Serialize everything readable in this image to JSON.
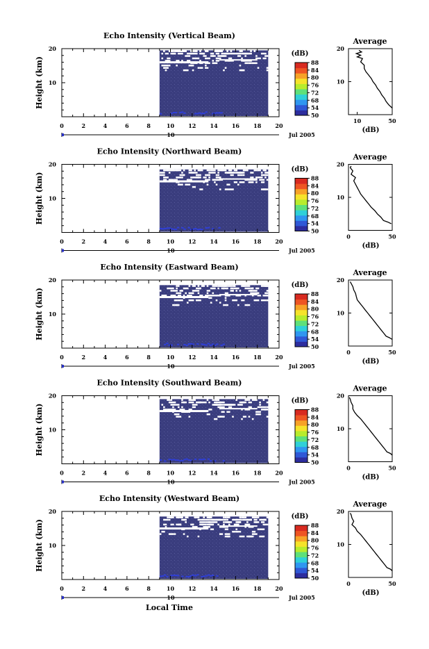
{
  "colors": {
    "background_fill": "#3a3d7e",
    "echo_white": "#ffffff",
    "colorbar": [
      "#2d2d9e",
      "#2f58d6",
      "#2f96f0",
      "#2fd0d8",
      "#5ee07a",
      "#b8ec2c",
      "#f6e32a",
      "#f7a227",
      "#ee5523",
      "#d82a20"
    ]
  },
  "common": {
    "ylabel": "Height (km)",
    "colorbar_unit": "(dB)",
    "colorbar_ticks": [
      "50",
      "54",
      "68",
      "72",
      "76",
      "80",
      "84",
      "88"
    ],
    "x_ticks": [
      "0",
      "2",
      "4",
      "6",
      "8",
      "10",
      "12",
      "14",
      "16",
      "18",
      "20"
    ],
    "y_ticks": [
      "10",
      "20"
    ],
    "date_day": "10",
    "date_label": "Jul 2005",
    "avg_title": "Average",
    "avg_xlabel": "(dB)",
    "xlabel": "Local Time"
  },
  "chart_data": [
    {
      "type": "heatmap",
      "title": "Echo Intensity (Vertical Beam)",
      "ylabel": "Height (km)",
      "xlabel": "Local Time",
      "xlim": [
        0,
        20
      ],
      "ylim": [
        0,
        20
      ],
      "data_x_range": [
        9,
        19
      ],
      "data_top_km": 19.5,
      "cbar_range_db": [
        50,
        88
      ],
      "avg_profile": {
        "xlim": [
          0,
          50
        ],
        "x_ticks": [
          "10",
          "50"
        ],
        "height": [
          19.5,
          19,
          18.5,
          18,
          17.5,
          17,
          16,
          15,
          14,
          13,
          12,
          11,
          10,
          9,
          8,
          7,
          6,
          5,
          4,
          3,
          2.5,
          2
        ],
        "db": [
          12,
          15,
          9,
          14,
          10,
          16,
          14,
          18,
          18,
          20,
          23,
          26,
          28,
          31,
          33,
          36,
          38,
          41,
          43,
          46,
          48,
          50
        ]
      }
    },
    {
      "type": "heatmap",
      "title": "Echo Intensity (Northward Beam)",
      "ylabel": "Height (km)",
      "xlabel": "Local Time",
      "xlim": [
        0,
        20
      ],
      "ylim": [
        0,
        20
      ],
      "data_x_range": [
        9,
        19
      ],
      "data_top_km": 18.5,
      "cbar_range_db": [
        50,
        88
      ],
      "avg_profile": {
        "xlim": [
          0,
          50
        ],
        "x_ticks": [
          "0",
          "50"
        ],
        "height": [
          19.5,
          19,
          18,
          17,
          16,
          15,
          14,
          13,
          12,
          11,
          10,
          9,
          8,
          7,
          6,
          5,
          4,
          3,
          2.5,
          2
        ],
        "db": [
          3,
          2,
          5,
          3,
          8,
          6,
          8,
          10,
          12,
          14,
          17,
          20,
          23,
          26,
          30,
          33,
          37,
          40,
          45,
          49
        ]
      }
    },
    {
      "type": "heatmap",
      "title": "Echo Intensity (Eastward Beam)",
      "ylabel": "Height (km)",
      "xlabel": "Local Time",
      "xlim": [
        0,
        20
      ],
      "ylim": [
        0,
        20
      ],
      "data_x_range": [
        9,
        19
      ],
      "data_top_km": 18.5,
      "cbar_range_db": [
        50,
        88
      ],
      "avg_profile": {
        "xlim": [
          0,
          50
        ],
        "x_ticks": [
          "0",
          "50"
        ],
        "height": [
          19.5,
          19,
          18,
          17,
          16,
          15,
          14,
          13,
          12,
          11,
          10,
          9,
          8,
          7,
          6,
          5,
          4,
          3,
          2.5,
          2
        ],
        "db": [
          2,
          3,
          5,
          6,
          8,
          9,
          10,
          13,
          16,
          19,
          22,
          25,
          28,
          31,
          34,
          37,
          40,
          43,
          47,
          50
        ]
      }
    },
    {
      "type": "heatmap",
      "title": "Echo Intensity (Southward Beam)",
      "ylabel": "Height (km)",
      "xlabel": "Local Time",
      "xlim": [
        0,
        20
      ],
      "ylim": [
        0,
        20
      ],
      "data_x_range": [
        9,
        19
      ],
      "data_top_km": 19,
      "cbar_range_db": [
        50,
        88
      ],
      "avg_profile": {
        "xlim": [
          0,
          50
        ],
        "x_ticks": [
          "0",
          "50"
        ],
        "height": [
          19.5,
          19,
          18,
          17,
          16,
          15,
          14,
          13,
          12,
          11,
          10,
          9,
          8,
          7,
          6,
          5,
          4,
          3,
          2.5,
          2
        ],
        "db": [
          1,
          2,
          3,
          5,
          5,
          7,
          10,
          14,
          17,
          20,
          23,
          26,
          29,
          32,
          35,
          38,
          41,
          44,
          48,
          50
        ]
      }
    },
    {
      "type": "heatmap",
      "title": "Echo Intensity (Westward Beam)",
      "ylabel": "Height (km)",
      "xlabel": "Local Time",
      "xlim": [
        0,
        20
      ],
      "ylim": [
        0,
        20
      ],
      "data_x_range": [
        9,
        19
      ],
      "data_top_km": 18.5,
      "cbar_range_db": [
        50,
        88
      ],
      "avg_profile": {
        "xlim": [
          0,
          50
        ],
        "x_ticks": [
          "0",
          "50"
        ],
        "height": [
          19.5,
          19,
          18,
          17,
          16,
          15,
          14,
          13,
          12,
          11,
          10,
          9,
          8,
          7,
          6,
          5,
          4,
          3,
          2.5,
          2
        ],
        "db": [
          2,
          3,
          4,
          6,
          4,
          8,
          10,
          14,
          17,
          20,
          23,
          26,
          29,
          32,
          35,
          38,
          41,
          44,
          48,
          50
        ]
      }
    }
  ]
}
